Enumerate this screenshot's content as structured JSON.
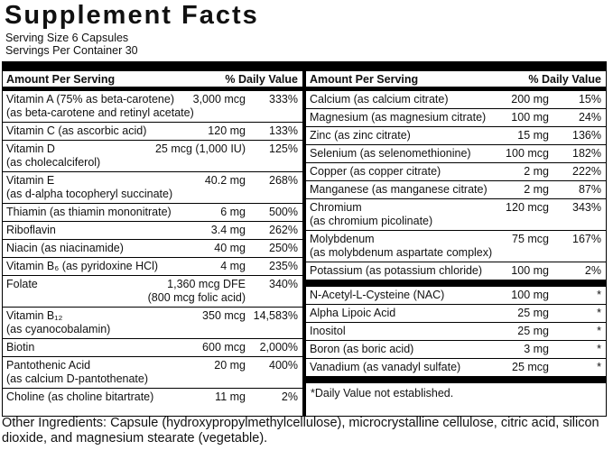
{
  "title": "Supplement Facts",
  "serving_size": "Serving Size 6 Capsules",
  "servings_per_container": "Servings Per Container 30",
  "columns": [
    {
      "header_amount": "Amount Per Serving",
      "header_dv": "% Daily Value",
      "sections": [
        [
          {
            "name": "Vitamin A (75% as beta-carotene)",
            "note": "(as beta-carotene and retinyl acetate)",
            "amount": "3,000 mcg",
            "dv": "333%"
          },
          {
            "name": "Vitamin C (as ascorbic acid)",
            "amount": "120 mg",
            "dv": "133%"
          },
          {
            "name": "Vitamin D",
            "note": "(as cholecalciferol)",
            "amount": "25 mcg (1,000 IU)",
            "dv": "125%"
          },
          {
            "name": "Vitamin E",
            "note": "(as d-alpha tocopheryl succinate)",
            "amount": "40.2 mg",
            "dv": "268%"
          },
          {
            "name": "Thiamin (as thiamin mononitrate)",
            "amount": "6 mg",
            "dv": "500%"
          },
          {
            "name": "Riboflavin",
            "amount": "3.4 mg",
            "dv": "262%"
          },
          {
            "name": "Niacin (as niacinamide)",
            "amount": "40 mg",
            "dv": "250%"
          },
          {
            "name": "Vitamin B₆ (as pyridoxine HCl)",
            "amount": "4 mg",
            "dv": "235%"
          },
          {
            "name": "Folate",
            "amount": "1,360 mcg DFE",
            "amount_note": "(800 mcg folic acid)",
            "dv": "340%"
          },
          {
            "name": "Vitamin B₁₂",
            "note": "(as cyanocobalamin)",
            "amount": "350 mcg",
            "dv": "14,583%"
          },
          {
            "name": "Biotin",
            "amount": "600 mcg",
            "dv": "2,000%"
          },
          {
            "name": "Pantothenic Acid",
            "note": "(as calcium D-pantothenate)",
            "amount": "20 mg",
            "dv": "400%"
          },
          {
            "name": "Choline (as choline bitartrate)",
            "amount": "11 mg",
            "dv": "2%"
          }
        ]
      ]
    },
    {
      "header_amount": "Amount Per Serving",
      "header_dv": "% Daily Value",
      "sections": [
        [
          {
            "name": "Calcium (as calcium citrate)",
            "amount": "200 mg",
            "dv": "15%"
          },
          {
            "name": "Magnesium (as magnesium citrate)",
            "amount": "100 mg",
            "dv": "24%"
          },
          {
            "name": "Zinc (as zinc citrate)",
            "amount": "15 mg",
            "dv": "136%"
          },
          {
            "name": "Selenium (as selenomethionine)",
            "amount": "100 mcg",
            "dv": "182%"
          },
          {
            "name": "Copper (as copper citrate)",
            "amount": "2 mg",
            "dv": "222%"
          },
          {
            "name": "Manganese (as manganese citrate)",
            "amount": "2 mg",
            "dv": "87%"
          },
          {
            "name": "Chromium",
            "note": "(as chromium picolinate)",
            "amount": "120 mcg",
            "dv": "343%"
          },
          {
            "name": "Molybdenum",
            "note": "(as molybdenum aspartate complex)",
            "amount": "75 mcg",
            "dv": "167%"
          },
          {
            "name": "Potassium (as potassium chloride)",
            "amount": "100 mg",
            "dv": "2%"
          }
        ],
        [
          {
            "name": "N-Acetyl-L-Cysteine (NAC)",
            "amount": "100 mg",
            "dv": "*"
          },
          {
            "name": "Alpha Lipoic Acid",
            "amount": "25 mg",
            "dv": "*"
          },
          {
            "name": "Inositol",
            "amount": "25 mg",
            "dv": "*"
          },
          {
            "name": "Boron (as boric acid)",
            "amount": "3 mg",
            "dv": "*"
          },
          {
            "name": "Vanadium (as vanadyl sulfate)",
            "amount": "25 mcg",
            "dv": "*"
          }
        ]
      ],
      "footnote": "*Daily Value not established."
    }
  ],
  "other_ingredients": "Other Ingredients: Capsule (hydroxypropylmethylcellulose), microcrystalline cellulose, citric acid, silicon dioxide, and magnesium stearate (vegetable)."
}
